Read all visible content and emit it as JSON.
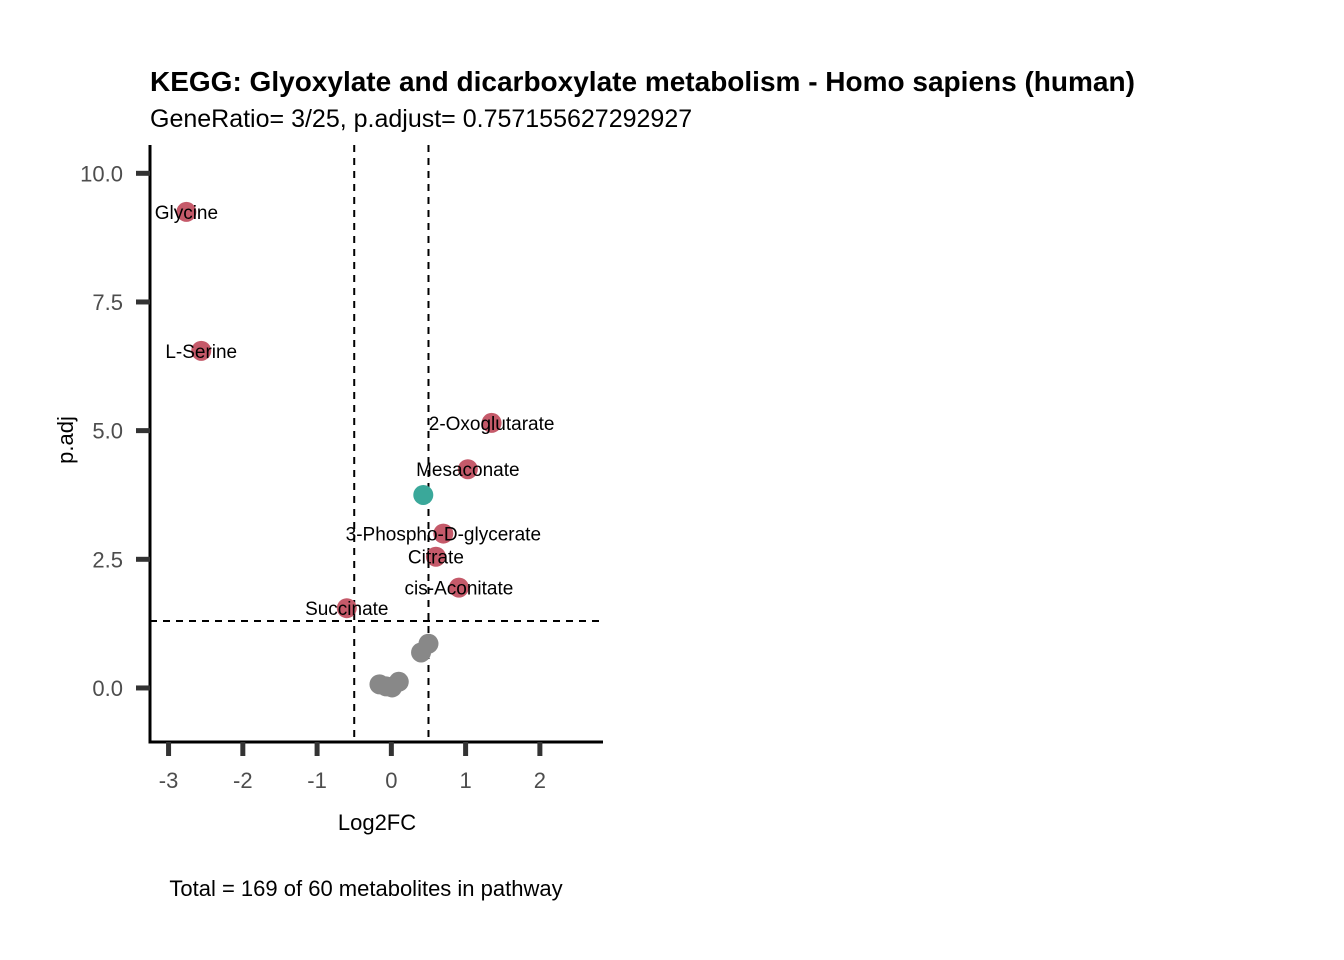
{
  "chart_data": {
    "type": "scatter",
    "title": "KEGG: Glyoxylate and dicarboxylate metabolism - Homo sapiens (human)",
    "subtitle": "GeneRatio= 3/25, p.adjust= 0.757155627292927",
    "xlabel": "Log2FC",
    "ylabel": "p.adj",
    "caption": "Total = 169 of 60 metabolites in pathway",
    "xlim": [
      -3.25,
      2.85
    ],
    "ylim": [
      -1.05,
      10.55
    ],
    "x_ticks": [
      -3,
      -2,
      -1,
      0,
      1,
      2
    ],
    "x_tick_labels": [
      "-3",
      "-2",
      "-1",
      "0",
      "1",
      "2"
    ],
    "y_ticks": [
      0,
      2.5,
      5,
      7.5,
      10
    ],
    "y_tick_labels": [
      "0.0",
      "2.5",
      "5.0",
      "7.5",
      "10.0"
    ],
    "vlines": [
      -0.5,
      0.5
    ],
    "hline": 1.3,
    "grid": false,
    "legend": "none",
    "colors": {
      "up": "#c55a6a",
      "down": "#3aa89a",
      "ns": "#888888"
    },
    "points": [
      {
        "label": "Glycine",
        "x": -2.76,
        "y": 9.25,
        "group": "up"
      },
      {
        "label": "L-Serine",
        "x": -2.56,
        "y": 6.55,
        "group": "up"
      },
      {
        "label": "2-Oxoglutarate",
        "x": 1.35,
        "y": 5.15,
        "group": "up"
      },
      {
        "label": "Mesaconate",
        "x": 1.03,
        "y": 4.25,
        "group": "up"
      },
      {
        "label": "",
        "x": 0.43,
        "y": 3.75,
        "group": "down"
      },
      {
        "label": "3-Phospho-D-glycerate",
        "x": 0.7,
        "y": 3.0,
        "group": "up"
      },
      {
        "label": "Citrate",
        "x": 0.6,
        "y": 2.55,
        "group": "up"
      },
      {
        "label": "cis-Aconitate",
        "x": 0.91,
        "y": 1.95,
        "group": "up"
      },
      {
        "label": "Succinate",
        "x": -0.6,
        "y": 1.55,
        "group": "up"
      },
      {
        "label": "",
        "x": 0.5,
        "y": 0.86,
        "group": "ns"
      },
      {
        "label": "",
        "x": 0.4,
        "y": 0.69,
        "group": "ns"
      },
      {
        "label": "",
        "x": 0.1,
        "y": 0.12,
        "group": "ns"
      },
      {
        "label": "",
        "x": -0.16,
        "y": 0.07,
        "group": "ns"
      },
      {
        "label": "",
        "x": -0.07,
        "y": 0.03,
        "group": "ns"
      },
      {
        "label": "",
        "x": 0.01,
        "y": 0.01,
        "group": "ns"
      }
    ]
  }
}
